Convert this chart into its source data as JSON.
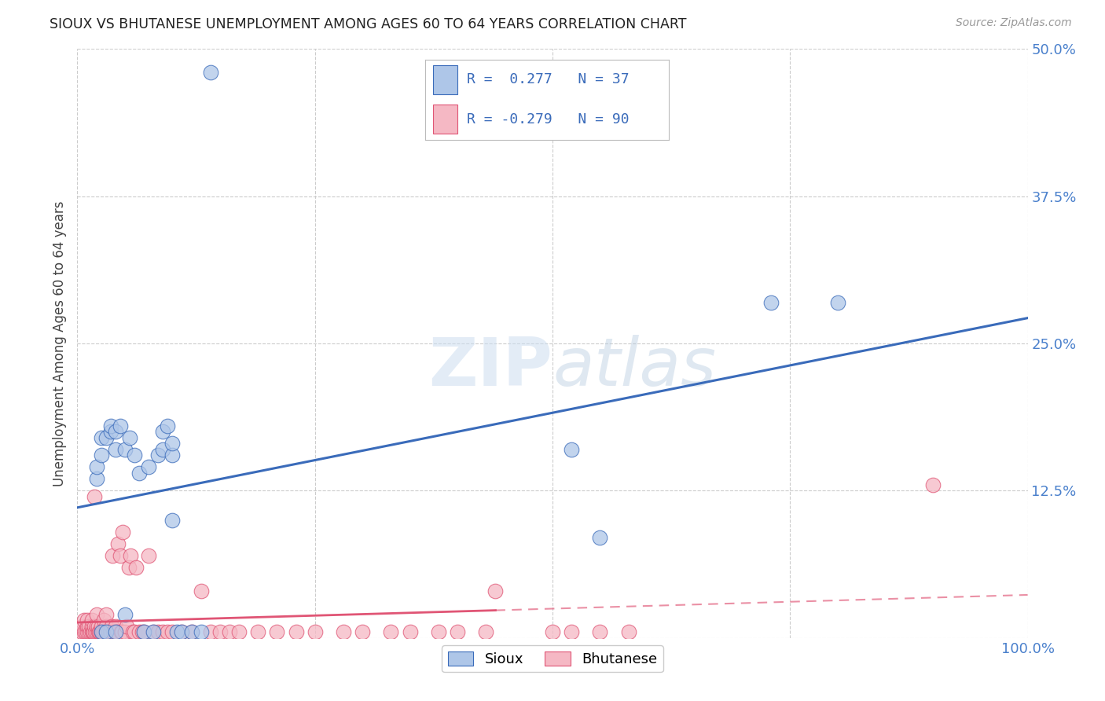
{
  "title": "SIOUX VS BHUTANESE UNEMPLOYMENT AMONG AGES 60 TO 64 YEARS CORRELATION CHART",
  "source": "Source: ZipAtlas.com",
  "ylabel": "Unemployment Among Ages 60 to 64 years",
  "xlim": [
    0.0,
    1.0
  ],
  "ylim": [
    0.0,
    0.5
  ],
  "xticks": [
    0.0,
    0.25,
    0.5,
    0.75,
    1.0
  ],
  "xticklabels": [
    "0.0%",
    "",
    "",
    "",
    "100.0%"
  ],
  "yticks": [
    0.0,
    0.125,
    0.25,
    0.375,
    0.5
  ],
  "yticklabels": [
    "",
    "12.5%",
    "25.0%",
    "37.5%",
    "50.0%"
  ],
  "legend_r_sioux": "0.277",
  "legend_n_sioux": "37",
  "legend_r_bhutanese": "-0.279",
  "legend_n_bhutanese": "90",
  "sioux_color": "#aec6e8",
  "bhutanese_color": "#f5b8c4",
  "sioux_line_color": "#3a6bba",
  "bhutanese_line_color": "#e05575",
  "background_color": "#ffffff",
  "sioux_x": [
    0.02,
    0.02,
    0.025,
    0.025,
    0.025,
    0.03,
    0.03,
    0.035,
    0.035,
    0.04,
    0.04,
    0.04,
    0.045,
    0.05,
    0.05,
    0.055,
    0.06,
    0.065,
    0.07,
    0.075,
    0.08,
    0.085,
    0.09,
    0.09,
    0.095,
    0.1,
    0.1,
    0.1,
    0.105,
    0.11,
    0.12,
    0.13,
    0.14,
    0.52,
    0.55,
    0.73,
    0.8
  ],
  "sioux_y": [
    0.135,
    0.145,
    0.005,
    0.155,
    0.17,
    0.005,
    0.17,
    0.175,
    0.18,
    0.005,
    0.16,
    0.175,
    0.18,
    0.02,
    0.16,
    0.17,
    0.155,
    0.14,
    0.005,
    0.145,
    0.005,
    0.155,
    0.16,
    0.175,
    0.18,
    0.1,
    0.155,
    0.165,
    0.005,
    0.005,
    0.005,
    0.005,
    0.48,
    0.16,
    0.085,
    0.285,
    0.285
  ],
  "bhutanese_x": [
    0.005,
    0.005,
    0.007,
    0.007,
    0.009,
    0.01,
    0.01,
    0.01,
    0.012,
    0.012,
    0.014,
    0.015,
    0.015,
    0.015,
    0.016,
    0.017,
    0.018,
    0.018,
    0.019,
    0.02,
    0.02,
    0.02,
    0.022,
    0.022,
    0.023,
    0.024,
    0.025,
    0.025,
    0.026,
    0.027,
    0.028,
    0.029,
    0.03,
    0.03,
    0.03,
    0.032,
    0.033,
    0.034,
    0.035,
    0.036,
    0.037,
    0.038,
    0.04,
    0.04,
    0.042,
    0.043,
    0.045,
    0.046,
    0.047,
    0.048,
    0.05,
    0.052,
    0.054,
    0.056,
    0.058,
    0.06,
    0.062,
    0.065,
    0.068,
    0.07,
    0.075,
    0.08,
    0.085,
    0.09,
    0.095,
    0.1,
    0.11,
    0.12,
    0.13,
    0.14,
    0.15,
    0.16,
    0.17,
    0.19,
    0.21,
    0.23,
    0.25,
    0.28,
    0.3,
    0.33,
    0.35,
    0.38,
    0.4,
    0.43,
    0.44,
    0.5,
    0.52,
    0.55,
    0.58,
    0.9
  ],
  "bhutanese_y": [
    0.005,
    0.01,
    0.005,
    0.015,
    0.005,
    0.005,
    0.01,
    0.015,
    0.005,
    0.01,
    0.005,
    0.005,
    0.01,
    0.015,
    0.005,
    0.005,
    0.01,
    0.12,
    0.005,
    0.005,
    0.01,
    0.02,
    0.005,
    0.01,
    0.005,
    0.005,
    0.005,
    0.01,
    0.005,
    0.005,
    0.015,
    0.005,
    0.005,
    0.01,
    0.02,
    0.005,
    0.005,
    0.005,
    0.005,
    0.01,
    0.07,
    0.005,
    0.005,
    0.01,
    0.005,
    0.08,
    0.07,
    0.005,
    0.005,
    0.09,
    0.005,
    0.01,
    0.06,
    0.07,
    0.005,
    0.005,
    0.06,
    0.005,
    0.005,
    0.005,
    0.07,
    0.005,
    0.005,
    0.005,
    0.005,
    0.005,
    0.005,
    0.005,
    0.04,
    0.005,
    0.005,
    0.005,
    0.005,
    0.005,
    0.005,
    0.005,
    0.005,
    0.005,
    0.005,
    0.005,
    0.005,
    0.005,
    0.005,
    0.005,
    0.04,
    0.005,
    0.005,
    0.005,
    0.005,
    0.13
  ]
}
